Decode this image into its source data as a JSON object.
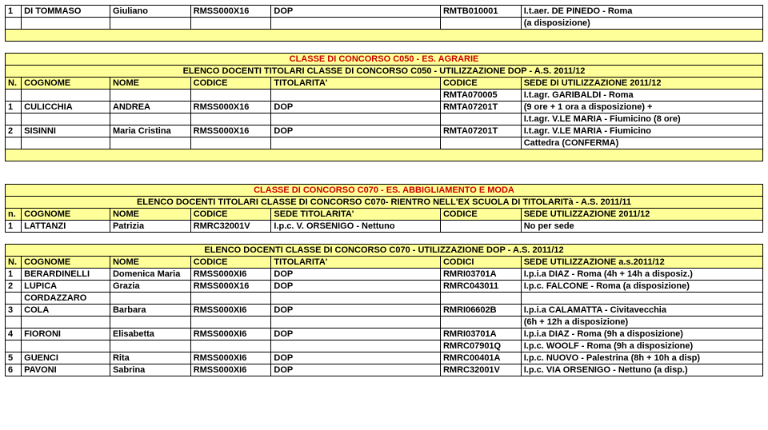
{
  "block1": {
    "rows": [
      {
        "n": "1",
        "cognome": "DI TOMMASO",
        "nome": "Giuliano",
        "codice": "RMSS000X16",
        "titolarita": "DOP",
        "codice2": "RMTB010001",
        "sede": "I.t.aer. DE PINEDO - Roma"
      },
      {
        "n": "",
        "cognome": "",
        "nome": "",
        "codice": "",
        "titolarita": "",
        "codice2": "",
        "sede": "(a disposizione)"
      }
    ]
  },
  "block2": {
    "title": "CLASSE DI CONCORSO C050 - ES. AGRARIE",
    "subtitle": "ELENCO DOCENTI TITOLARI CLASSE DI CONCORSO C050 - UTILIZZAZIONE DOP - A.S. 2011/12",
    "header": [
      "N.",
      "COGNOME",
      "NOME",
      "CODICE",
      "TITOLARITA'",
      "CODICE",
      "SEDE DI UTILIZZAZIONE 2011/12"
    ],
    "rows": [
      {
        "n": "",
        "cognome": "",
        "nome": "",
        "codice": "",
        "titolarita": "",
        "codice2": "RMTA070005",
        "sede": "I.t.agr. GARIBALDI - Roma"
      },
      {
        "n": "1",
        "cognome": "CULICCHIA",
        "nome": "ANDREA",
        "codice": "RMSS000X16",
        "titolarita": "DOP",
        "codice2": "RMTA07201T",
        "sede": "(9 ore + 1 ora a disposizione) +"
      },
      {
        "n": "",
        "cognome": "",
        "nome": "",
        "codice": "",
        "titolarita": "",
        "codice2": "",
        "sede": "I.t.agr. V.LE MARIA - Fiumicino (8 ore)"
      },
      {
        "n": "2",
        "cognome": "SISINNI",
        "nome": "Maria Cristina",
        "codice": "RMSS000X16",
        "titolarita": "DOP",
        "codice2": "RMTA07201T",
        "sede": "I.t.agr. V.LE MARIA - Fiumicino"
      },
      {
        "n": "",
        "cognome": "",
        "nome": "",
        "codice": "",
        "titolarita": "",
        "codice2": "",
        "sede": "Cattedra (CONFERMA)"
      }
    ]
  },
  "block3": {
    "title": "CLASSE DI CONCORSO C070 - ES. ABBIGLIAMENTO E MODA",
    "subtitle": "ELENCO DOCENTI TITOLARI CLASSE DI CONCORSO C070- RIENTRO NELL'EX SCUOLA DI TITOLARITà - A.S. 2011/11",
    "header": [
      "n.",
      "COGNOME",
      "NOME",
      "CODICE",
      "SEDE TITOLARITA'",
      "CODICE",
      "SEDE UTILIZZAZIONE 2011/12"
    ],
    "rows": [
      {
        "n": "1",
        "cognome": "LATTANZI",
        "nome": "Patrizia",
        "codice": "RMRC32001V",
        "titolarita": "I.p.c. V. ORSENIGO - Nettuno",
        "codice2": "",
        "sede": "No per sede"
      }
    ]
  },
  "block4": {
    "subtitle": "ELENCO DOCENTI CLASSE DI CONCORSO C070 - UTILIZZAZIONE DOP - A.S. 2011/12",
    "header": [
      "N.",
      "COGNOME",
      "NOME",
      "CODICE",
      "TITOLARITA'",
      "CODICI",
      "SEDE UTILIZZAZIONE a.s.2011/12"
    ],
    "rows": [
      {
        "n": "1",
        "cognome": "BERARDINELLI",
        "nome": "Domenica Maria",
        "codice": "RMSS000XI6",
        "titolarita": "DOP",
        "codice2": "RMRI03701A",
        "sede": "I.p.i.a DIAZ - Roma (4h + 14h a disposiz.)"
      },
      {
        "n": "2",
        "cognome": "LUPICA",
        "nome": "Grazia",
        "codice": "RMSS000X16",
        "titolarita": "DOP",
        "codice2": "RMRC043011",
        "sede": "I.p.c. FALCONE - Roma (a disposizione)"
      },
      {
        "n": "",
        "cognome": "CORDAZZARO",
        "nome": "",
        "codice": "",
        "titolarita": "",
        "codice2": "",
        "sede": ""
      },
      {
        "n": "3",
        "cognome": "COLA",
        "nome": "Barbara",
        "codice": "RMSS000XI6",
        "titolarita": "DOP",
        "codice2": "RMRI06602B",
        "sede": "I.p.i.a CALAMATTA - Civitavecchia"
      },
      {
        "n": "",
        "cognome": "",
        "nome": "",
        "codice": "",
        "titolarita": "",
        "codice2": "",
        "sede": "(6h + 12h a disposizione)"
      },
      {
        "n": "4",
        "cognome": "FIORONI",
        "nome": "Elisabetta",
        "codice": "RMSS000XI6",
        "titolarita": "DOP",
        "codice2": "RMRI03701A",
        "sede": "I.p.i.a DIAZ - Roma (9h a disposizione)"
      },
      {
        "n": "",
        "cognome": "",
        "nome": "",
        "codice": "",
        "titolarita": "",
        "codice2": "RMRC07901Q",
        "sede": "I.p.c. WOOLF - Roma (9h a disposizione)"
      },
      {
        "n": "5",
        "cognome": "GUENCI",
        "nome": "Rita",
        "codice": "RMSS000XI6",
        "titolarita": "DOP",
        "codice2": "RMRC00401A",
        "sede": "I.p.c. NUOVO - Palestrina (8h + 10h a disp)"
      },
      {
        "n": "6",
        "cognome": "PAVONI",
        "nome": "Sabrina",
        "codice": "RMSS000XI6",
        "titolarita": "DOP",
        "codice2": "RMRC32001V",
        "sede": "I.p.c. VIA ORSENIGO - Nettuno (a disp.)"
      }
    ]
  }
}
